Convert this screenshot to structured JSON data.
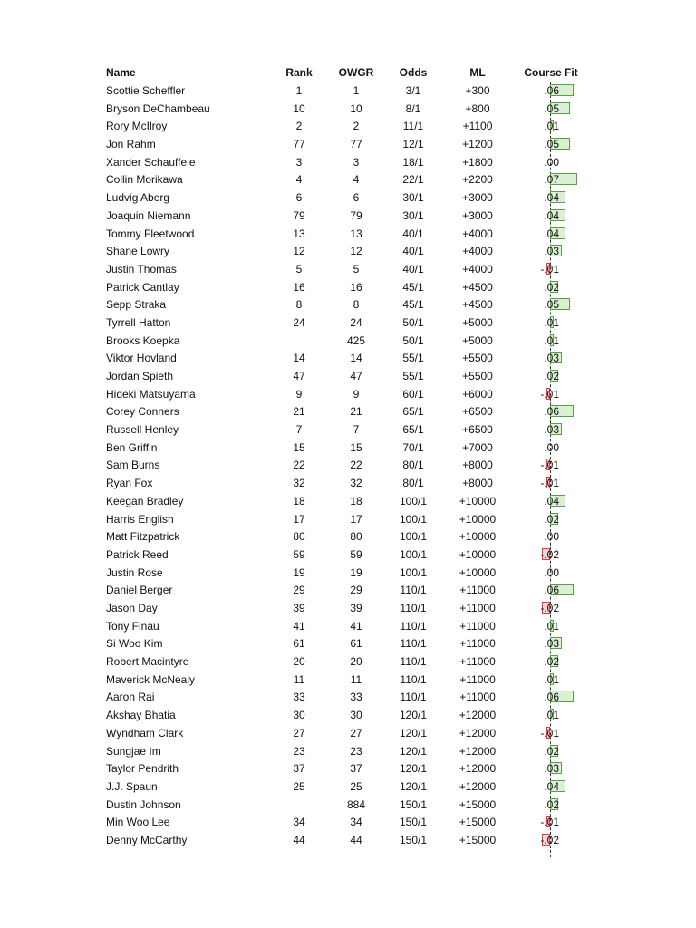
{
  "headers": {
    "name": "Name",
    "rank": "Rank",
    "owgr": "OWGR",
    "odds": "Odds",
    "ml": "ML",
    "fit": "Course Fit"
  },
  "colors": {
    "positive_bar": "#d9f0d3",
    "positive_border": "#5a9e4a",
    "negative_bar": "#fcd6d6",
    "negative_border": "#e83a3a"
  },
  "rows": [
    {
      "name": "Scottie Scheffler",
      "rank": "1",
      "owgr": "1",
      "odds": "3/1",
      "ml": "+300",
      "fit": ".06",
      "fit_value": 0.06
    },
    {
      "name": "Bryson DeChambeau",
      "rank": "10",
      "owgr": "10",
      "odds": "8/1",
      "ml": "+800",
      "fit": ".05",
      "fit_value": 0.05
    },
    {
      "name": "Rory McIlroy",
      "rank": "2",
      "owgr": "2",
      "odds": "11/1",
      "ml": "+1100",
      "fit": ".01",
      "fit_value": 0.01
    },
    {
      "name": "Jon Rahm",
      "rank": "77",
      "owgr": "77",
      "odds": "12/1",
      "ml": "+1200",
      "fit": ".05",
      "fit_value": 0.05
    },
    {
      "name": "Xander Schauffele",
      "rank": "3",
      "owgr": "3",
      "odds": "18/1",
      "ml": "+1800",
      "fit": ".00",
      "fit_value": 0
    },
    {
      "name": "Collin Morikawa",
      "rank": "4",
      "owgr": "4",
      "odds": "22/1",
      "ml": "+2200",
      "fit": ".07",
      "fit_value": 0.07
    },
    {
      "name": "Ludvig Aberg",
      "rank": "6",
      "owgr": "6",
      "odds": "30/1",
      "ml": "+3000",
      "fit": ".04",
      "fit_value": 0.04
    },
    {
      "name": "Joaquin Niemann",
      "rank": "79",
      "owgr": "79",
      "odds": "30/1",
      "ml": "+3000",
      "fit": ".04",
      "fit_value": 0.04
    },
    {
      "name": "Tommy Fleetwood",
      "rank": "13",
      "owgr": "13",
      "odds": "40/1",
      "ml": "+4000",
      "fit": ".04",
      "fit_value": 0.04
    },
    {
      "name": "Shane Lowry",
      "rank": "12",
      "owgr": "12",
      "odds": "40/1",
      "ml": "+4000",
      "fit": ".03",
      "fit_value": 0.03
    },
    {
      "name": "Justin Thomas",
      "rank": "5",
      "owgr": "5",
      "odds": "40/1",
      "ml": "+4000",
      "fit": "-.01",
      "fit_value": -0.01
    },
    {
      "name": "Patrick Cantlay",
      "rank": "16",
      "owgr": "16",
      "odds": "45/1",
      "ml": "+4500",
      "fit": ".02",
      "fit_value": 0.02
    },
    {
      "name": "Sepp Straka",
      "rank": "8",
      "owgr": "8",
      "odds": "45/1",
      "ml": "+4500",
      "fit": ".05",
      "fit_value": 0.05
    },
    {
      "name": "Tyrrell Hatton",
      "rank": "24",
      "owgr": "24",
      "odds": "50/1",
      "ml": "+5000",
      "fit": ".01",
      "fit_value": 0.01
    },
    {
      "name": "Brooks Koepka",
      "rank": "",
      "owgr": "425",
      "odds": "50/1",
      "ml": "+5000",
      "fit": ".01",
      "fit_value": 0.01
    },
    {
      "name": "Viktor Hovland",
      "rank": "14",
      "owgr": "14",
      "odds": "55/1",
      "ml": "+5500",
      "fit": ".03",
      "fit_value": 0.03
    },
    {
      "name": "Jordan Spieth",
      "rank": "47",
      "owgr": "47",
      "odds": "55/1",
      "ml": "+5500",
      "fit": ".02",
      "fit_value": 0.02
    },
    {
      "name": "Hideki Matsuyama",
      "rank": "9",
      "owgr": "9",
      "odds": "60/1",
      "ml": "+6000",
      "fit": "-.01",
      "fit_value": -0.01
    },
    {
      "name": "Corey Conners",
      "rank": "21",
      "owgr": "21",
      "odds": "65/1",
      "ml": "+6500",
      "fit": ".06",
      "fit_value": 0.06
    },
    {
      "name": "Russell Henley",
      "rank": "7",
      "owgr": "7",
      "odds": "65/1",
      "ml": "+6500",
      "fit": ".03",
      "fit_value": 0.03
    },
    {
      "name": "Ben Griffin",
      "rank": "15",
      "owgr": "15",
      "odds": "70/1",
      "ml": "+7000",
      "fit": ".00",
      "fit_value": 0
    },
    {
      "name": "Sam Burns",
      "rank": "22",
      "owgr": "22",
      "odds": "80/1",
      "ml": "+8000",
      "fit": "-.01",
      "fit_value": -0.01
    },
    {
      "name": "Ryan Fox",
      "rank": "32",
      "owgr": "32",
      "odds": "80/1",
      "ml": "+8000",
      "fit": "-.01",
      "fit_value": -0.01
    },
    {
      "name": "Keegan Bradley",
      "rank": "18",
      "owgr": "18",
      "odds": "100/1",
      "ml": "+10000",
      "fit": ".04",
      "fit_value": 0.04
    },
    {
      "name": "Harris English",
      "rank": "17",
      "owgr": "17",
      "odds": "100/1",
      "ml": "+10000",
      "fit": ".02",
      "fit_value": 0.02
    },
    {
      "name": "Matt Fitzpatrick",
      "rank": "80",
      "owgr": "80",
      "odds": "100/1",
      "ml": "+10000",
      "fit": ".00",
      "fit_value": 0
    },
    {
      "name": "Patrick Reed",
      "rank": "59",
      "owgr": "59",
      "odds": "100/1",
      "ml": "+10000",
      "fit": "-.02",
      "fit_value": -0.02
    },
    {
      "name": "Justin Rose",
      "rank": "19",
      "owgr": "19",
      "odds": "100/1",
      "ml": "+10000",
      "fit": ".00",
      "fit_value": 0
    },
    {
      "name": "Daniel Berger",
      "rank": "29",
      "owgr": "29",
      "odds": "110/1",
      "ml": "+11000",
      "fit": ".06",
      "fit_value": 0.06
    },
    {
      "name": "Jason Day",
      "rank": "39",
      "owgr": "39",
      "odds": "110/1",
      "ml": "+11000",
      "fit": "-.02",
      "fit_value": -0.02
    },
    {
      "name": "Tony Finau",
      "rank": "41",
      "owgr": "41",
      "odds": "110/1",
      "ml": "+11000",
      "fit": ".01",
      "fit_value": 0.01
    },
    {
      "name": "Si Woo Kim",
      "rank": "61",
      "owgr": "61",
      "odds": "110/1",
      "ml": "+11000",
      "fit": ".03",
      "fit_value": 0.03
    },
    {
      "name": "Robert Macintyre",
      "rank": "20",
      "owgr": "20",
      "odds": "110/1",
      "ml": "+11000",
      "fit": ".02",
      "fit_value": 0.02
    },
    {
      "name": "Maverick McNealy",
      "rank": "11",
      "owgr": "11",
      "odds": "110/1",
      "ml": "+11000",
      "fit": ".01",
      "fit_value": 0.01
    },
    {
      "name": "Aaron Rai",
      "rank": "33",
      "owgr": "33",
      "odds": "110/1",
      "ml": "+11000",
      "fit": ".06",
      "fit_value": 0.06
    },
    {
      "name": "Akshay Bhatia",
      "rank": "30",
      "owgr": "30",
      "odds": "120/1",
      "ml": "+12000",
      "fit": ".01",
      "fit_value": 0.01
    },
    {
      "name": "Wyndham Clark",
      "rank": "27",
      "owgr": "27",
      "odds": "120/1",
      "ml": "+12000",
      "fit": "-.01",
      "fit_value": -0.01
    },
    {
      "name": "Sungjae Im",
      "rank": "23",
      "owgr": "23",
      "odds": "120/1",
      "ml": "+12000",
      "fit": ".02",
      "fit_value": 0.02
    },
    {
      "name": "Taylor Pendrith",
      "rank": "37",
      "owgr": "37",
      "odds": "120/1",
      "ml": "+12000",
      "fit": ".03",
      "fit_value": 0.03
    },
    {
      "name": "J.J. Spaun",
      "rank": "25",
      "owgr": "25",
      "odds": "120/1",
      "ml": "+12000",
      "fit": ".04",
      "fit_value": 0.04
    },
    {
      "name": "Dustin Johnson",
      "rank": "",
      "owgr": "884",
      "odds": "150/1",
      "ml": "+15000",
      "fit": ".02",
      "fit_value": 0.02
    },
    {
      "name": "Min Woo Lee",
      "rank": "34",
      "owgr": "34",
      "odds": "150/1",
      "ml": "+15000",
      "fit": "-.01",
      "fit_value": -0.01
    },
    {
      "name": "Denny McCarthy",
      "rank": "44",
      "owgr": "44",
      "odds": "150/1",
      "ml": "+15000",
      "fit": "-.02",
      "fit_value": -0.02
    }
  ]
}
